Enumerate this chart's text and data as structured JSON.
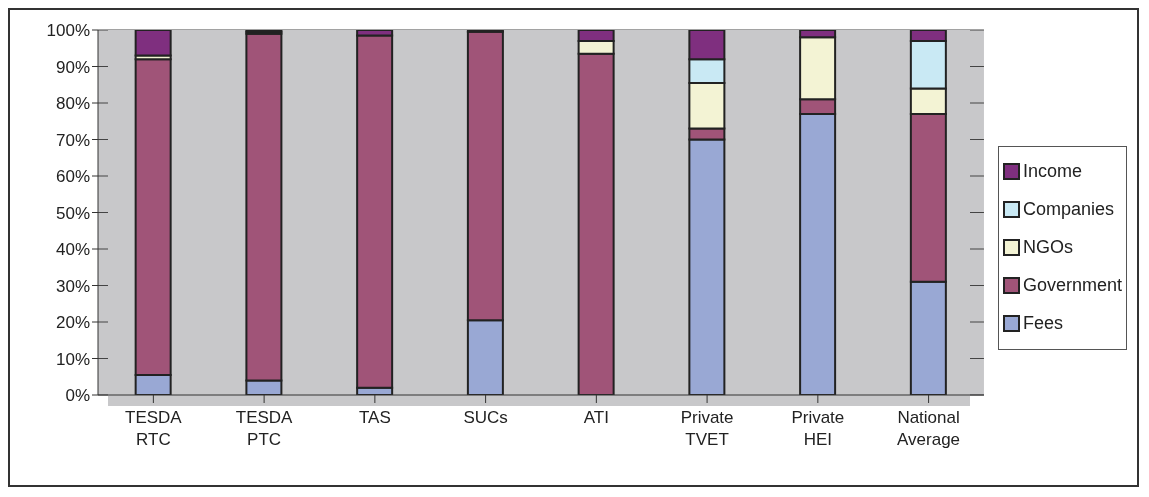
{
  "chart_data": {
    "type": "bar",
    "stacked": true,
    "categories": [
      "TESDA RTC",
      "TESDA PTC",
      "TAS",
      "SUCs",
      "ATI",
      "Private TVET",
      "Private HEI",
      "National Average"
    ],
    "series": [
      {
        "name": "Fees",
        "color": "#99a8d4",
        "values": [
          5.5,
          4,
          2,
          20.5,
          0,
          70,
          77,
          31
        ]
      },
      {
        "name": "Government",
        "color": "#a05478",
        "values": [
          86.5,
          95,
          96.5,
          79,
          93.5,
          3,
          4,
          46
        ]
      },
      {
        "name": "NGOs",
        "color": "#f3f3d4",
        "values": [
          1,
          0.5,
          0,
          0,
          3.5,
          12.5,
          17,
          7
        ]
      },
      {
        "name": "Companies",
        "color": "#c9e9f4",
        "values": [
          0,
          0,
          0,
          0,
          0,
          6.5,
          0,
          13
        ]
      },
      {
        "name": "Income",
        "color": "#7f2f7f",
        "values": [
          7,
          0.5,
          1.5,
          0.5,
          3,
          8,
          2,
          3
        ]
      }
    ],
    "ylim": [
      0,
      100
    ],
    "yticks": [
      {
        "value": 0,
        "label": "0%"
      },
      {
        "value": 10,
        "label": "10%"
      },
      {
        "value": 20,
        "label": "20%"
      },
      {
        "value": 30,
        "label": "30%"
      },
      {
        "value": 40,
        "label": "40%"
      },
      {
        "value": 50,
        "label": "50%"
      },
      {
        "value": 60,
        "label": "60%"
      },
      {
        "value": 70,
        "label": "70%"
      },
      {
        "value": 80,
        "label": "80%"
      },
      {
        "value": 90,
        "label": "90%"
      },
      {
        "value": 100,
        "label": "100%"
      }
    ],
    "grid": "y",
    "legend": "right"
  }
}
